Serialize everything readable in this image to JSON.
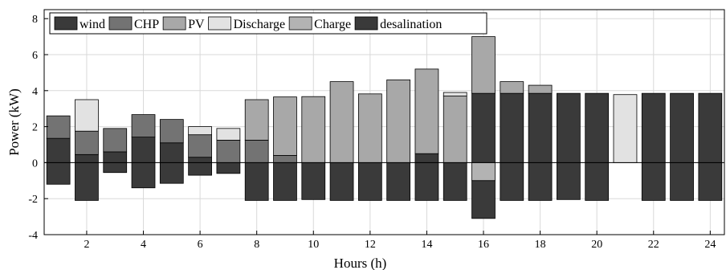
{
  "chart_data": {
    "type": "bar",
    "stacked": true,
    "xlabel": "Hours (h)",
    "ylabel": "Power (kW)",
    "xlim": [
      0.5,
      24.5
    ],
    "ylim": [
      -4,
      8.5
    ],
    "x_ticks": [
      2,
      4,
      6,
      8,
      10,
      12,
      14,
      16,
      18,
      20,
      22,
      24
    ],
    "y_ticks": [
      -4,
      -2,
      0,
      2,
      4,
      6,
      8
    ],
    "grid": true,
    "legend_position": "top-left",
    "hours": [
      1,
      2,
      3,
      4,
      5,
      6,
      7,
      8,
      9,
      10,
      11,
      12,
      13,
      14,
      15,
      16,
      17,
      18,
      19,
      20,
      21,
      22,
      23,
      24
    ],
    "series": [
      {
        "name": "wind",
        "color": "#3a3a3a",
        "side": "positive",
        "values": [
          1.35,
          0.45,
          0.6,
          1.42,
          1.1,
          0.3,
          0.0,
          0.0,
          0.0,
          0.0,
          0.0,
          0.0,
          0.0,
          0.5,
          0.0,
          3.85,
          3.85,
          3.85,
          3.85,
          3.85,
          0.0,
          3.85,
          3.85,
          3.85
        ]
      },
      {
        "name": "CHP",
        "color": "#737373",
        "side": "positive",
        "values": [
          1.25,
          1.3,
          1.3,
          1.25,
          1.3,
          1.25,
          1.25,
          1.25,
          0.4,
          0.0,
          0.0,
          0.0,
          0.0,
          0.0,
          0.0,
          0.0,
          0.0,
          0.0,
          0.0,
          0.0,
          0.0,
          0.0,
          0.0,
          0.0
        ]
      },
      {
        "name": "PV",
        "color": "#a8a8a8",
        "side": "positive",
        "values": [
          0.0,
          0.0,
          0.0,
          0.0,
          0.0,
          0.0,
          0.0,
          2.25,
          3.25,
          3.67,
          4.5,
          3.82,
          4.6,
          4.7,
          3.7,
          3.15,
          0.65,
          0.45,
          0.0,
          0.0,
          0.0,
          0.0,
          0.0,
          0.0
        ]
      },
      {
        "name": "Discharge",
        "color": "#e2e2e2",
        "side": "positive",
        "values": [
          0.0,
          1.75,
          0.0,
          0.0,
          0.0,
          0.45,
          0.65,
          0.0,
          0.0,
          0.0,
          0.0,
          0.0,
          0.0,
          0.0,
          0.2,
          0.0,
          0.0,
          0.0,
          0.0,
          0.0,
          3.78,
          0.0,
          0.0,
          0.0
        ]
      },
      {
        "name": "Charge",
        "color": "#b3b3b3",
        "side": "negative",
        "values": [
          0.0,
          0.0,
          0.0,
          0.0,
          0.0,
          0.0,
          0.0,
          0.0,
          0.0,
          0.0,
          0.0,
          0.0,
          0.0,
          0.0,
          0.0,
          -1.0,
          0.0,
          0.0,
          0.0,
          0.0,
          0.0,
          0.0,
          0.0,
          0.0
        ]
      },
      {
        "name": "desalination",
        "color": "#3a3a3a",
        "side": "negative",
        "values": [
          -1.2,
          -2.1,
          -0.55,
          -1.4,
          -1.15,
          -0.7,
          -0.6,
          -2.1,
          -2.1,
          -2.05,
          -2.1,
          -2.1,
          -2.1,
          -2.1,
          -2.1,
          -2.1,
          -2.1,
          -2.1,
          -2.05,
          -2.1,
          0.0,
          -2.1,
          -2.1,
          -2.1
        ]
      }
    ]
  }
}
